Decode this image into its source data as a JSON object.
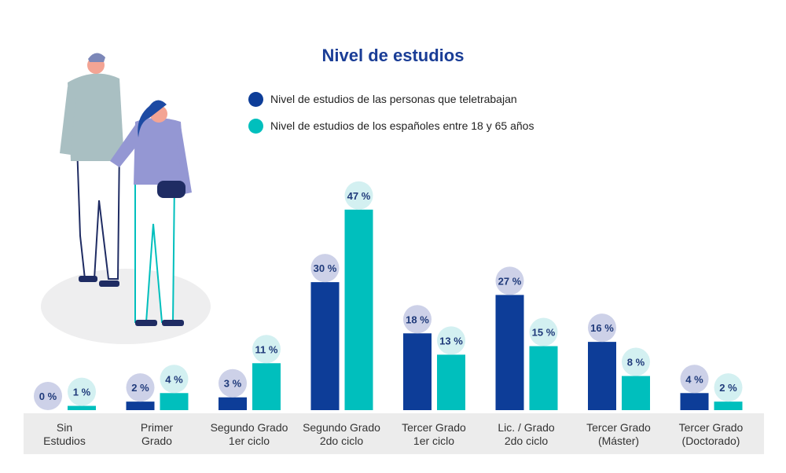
{
  "title": "Nivel de estudios",
  "legend": [
    {
      "label": "Nivel de estudios de las personas que teletrabajan",
      "color": "#0d3d98"
    },
    {
      "label": "Nivel de estudios de los españoles entre 18 y 65 años",
      "color": "#00bfbd"
    }
  ],
  "chart_data": {
    "type": "bar",
    "title": "Nivel de estudios",
    "categories": [
      [
        "Sin",
        "Estudios"
      ],
      [
        "Primer",
        "Grado"
      ],
      [
        "Segundo Grado",
        "1er ciclo"
      ],
      [
        "Segundo Grado",
        "2do ciclo"
      ],
      [
        "Tercer Grado",
        "1er ciclo"
      ],
      [
        "Lic. / Grado",
        "2do ciclo"
      ],
      [
        "Tercer Grado",
        "(Máster)"
      ],
      [
        "Tercer Grado",
        "(Doctorado)"
      ]
    ],
    "series": [
      {
        "name": "Nivel de estudios de las personas que teletrabajan",
        "color": "#0d3d98",
        "badge_color": "#cdd1e8",
        "values": [
          0,
          2,
          3,
          30,
          18,
          27,
          16,
          4
        ]
      },
      {
        "name": "Nivel de estudios de los españoles entre 18 y 65 años",
        "color": "#00bfbd",
        "badge_color": "#d3f0f1",
        "values": [
          1,
          4,
          11,
          47,
          13,
          15,
          8,
          2
        ]
      }
    ],
    "value_suffix": " %",
    "ylim": [
      0,
      50
    ],
    "xlabel": "",
    "ylabel": ""
  }
}
